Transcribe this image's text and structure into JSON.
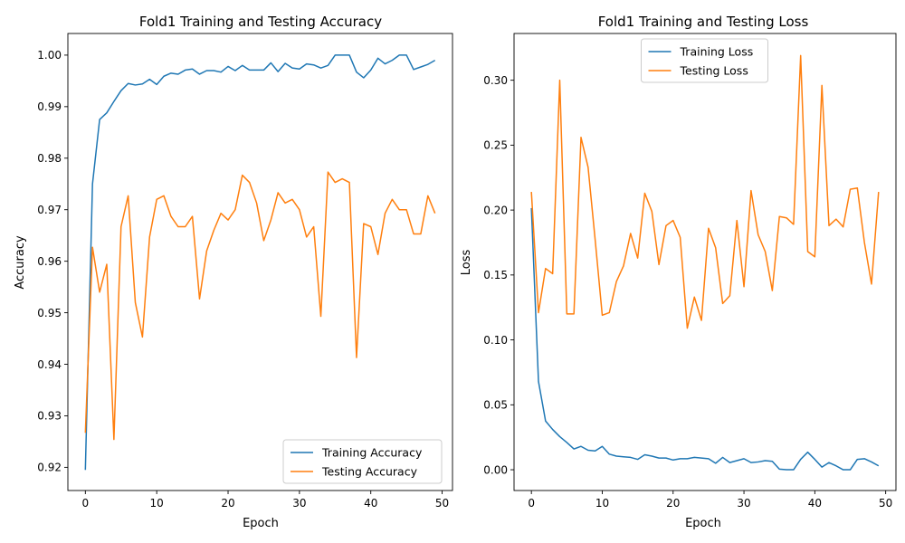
{
  "colors": {
    "training": "#1f77b4",
    "testing": "#ff7f0e"
  },
  "chart_data": [
    {
      "type": "line",
      "title": "Fold1 Training and Testing Accuracy",
      "xlabel": "Epoch",
      "ylabel": "Accuracy",
      "xlim": [
        -2.45,
        51.45
      ],
      "ylim": [
        0.9155,
        1.0042
      ],
      "xticks": [
        0,
        10,
        20,
        30,
        40,
        50
      ],
      "yticks": [
        0.92,
        0.93,
        0.94,
        0.95,
        0.96,
        0.97,
        0.98,
        0.99,
        1.0
      ],
      "ytick_labels": [
        "0.92",
        "0.93",
        "0.94",
        "0.95",
        "0.96",
        "0.97",
        "0.98",
        "0.99",
        "1.00"
      ],
      "grid": false,
      "legend_position": "lower-right",
      "x": [
        0,
        1,
        2,
        3,
        4,
        5,
        6,
        7,
        8,
        9,
        10,
        11,
        12,
        13,
        14,
        15,
        16,
        17,
        18,
        19,
        20,
        21,
        22,
        23,
        24,
        25,
        26,
        27,
        28,
        29,
        30,
        31,
        32,
        33,
        34,
        35,
        36,
        37,
        38,
        39,
        40,
        41,
        42,
        43,
        44,
        45,
        46,
        47,
        48,
        49
      ],
      "series": [
        {
          "name": "Training Accuracy",
          "color_key": "training",
          "values": [
            0.9195,
            0.975,
            0.9875,
            0.9888,
            0.991,
            0.9931,
            0.9945,
            0.9942,
            0.9944,
            0.9953,
            0.9943,
            0.9959,
            0.9965,
            0.9963,
            0.9971,
            0.9973,
            0.9963,
            0.997,
            0.997,
            0.9967,
            0.9978,
            0.997,
            0.998,
            0.9971,
            0.9971,
            0.9971,
            0.9985,
            0.9968,
            0.9984,
            0.9975,
            0.9973,
            0.9983,
            0.9981,
            0.9975,
            0.998,
            1.0,
            1.0,
            1.0,
            0.9967,
            0.9956,
            0.9971,
            0.9994,
            0.9983,
            0.999,
            1.0,
            1.0,
            0.9972,
            0.9977,
            0.9982,
            0.999
          ]
        },
        {
          "name": "Testing Accuracy",
          "color_key": "testing",
          "values": [
            0.9267,
            0.9627,
            0.954,
            0.9594,
            0.9254,
            0.9667,
            0.9727,
            0.952,
            0.9453,
            0.9647,
            0.972,
            0.9727,
            0.9687,
            0.9667,
            0.9667,
            0.9687,
            0.9527,
            0.962,
            0.966,
            0.9693,
            0.968,
            0.97,
            0.9767,
            0.9753,
            0.9713,
            0.964,
            0.968,
            0.9733,
            0.9713,
            0.972,
            0.97,
            0.9647,
            0.9667,
            0.9493,
            0.9773,
            0.9753,
            0.976,
            0.9753,
            0.9413,
            0.9673,
            0.9667,
            0.9613,
            0.9693,
            0.972,
            0.97,
            0.97,
            0.9653,
            0.9653,
            0.9727,
            0.9693
          ]
        }
      ]
    },
    {
      "type": "line",
      "title": "Fold1 Training and Testing Loss",
      "xlabel": "Epoch",
      "ylabel": "Loss",
      "xlim": [
        -2.45,
        51.45
      ],
      "ylim": [
        -0.016,
        0.336
      ],
      "xticks": [
        0,
        10,
        20,
        30,
        40,
        50
      ],
      "yticks": [
        0.0,
        0.05,
        0.1,
        0.15,
        0.2,
        0.25,
        0.3
      ],
      "ytick_labels": [
        "0.00",
        "0.05",
        "0.10",
        "0.15",
        "0.20",
        "0.25",
        "0.30"
      ],
      "grid": false,
      "legend_position": "upper-center",
      "x": [
        0,
        1,
        2,
        3,
        4,
        5,
        6,
        7,
        8,
        9,
        10,
        11,
        12,
        13,
        14,
        15,
        16,
        17,
        18,
        19,
        20,
        21,
        22,
        23,
        24,
        25,
        26,
        27,
        28,
        29,
        30,
        31,
        32,
        33,
        34,
        35,
        36,
        37,
        38,
        39,
        40,
        41,
        42,
        43,
        44,
        45,
        46,
        47,
        48,
        49
      ],
      "series": [
        {
          "name": "Training Loss",
          "color_key": "training",
          "values": [
            0.2015,
            0.068,
            0.0375,
            0.031,
            0.0255,
            0.021,
            0.016,
            0.018,
            0.015,
            0.0145,
            0.018,
            0.012,
            0.0105,
            0.01,
            0.0095,
            0.008,
            0.0115,
            0.0105,
            0.009,
            0.009,
            0.0075,
            0.0085,
            0.0085,
            0.0095,
            0.009,
            0.0085,
            0.005,
            0.0095,
            0.0055,
            0.007,
            0.0085,
            0.0055,
            0.006,
            0.007,
            0.0065,
            0.0005,
            0.0,
            0.0,
            0.008,
            0.0135,
            0.008,
            0.002,
            0.0055,
            0.003,
            0.0,
            0.0,
            0.008,
            0.0085,
            0.006,
            0.003
          ]
        },
        {
          "name": "Testing Loss",
          "color_key": "testing",
          "values": [
            0.214,
            0.121,
            0.155,
            0.151,
            0.3,
            0.12,
            0.12,
            0.256,
            0.233,
            0.177,
            0.119,
            0.121,
            0.145,
            0.157,
            0.182,
            0.163,
            0.213,
            0.199,
            0.158,
            0.188,
            0.192,
            0.179,
            0.109,
            0.133,
            0.115,
            0.186,
            0.171,
            0.128,
            0.134,
            0.192,
            0.141,
            0.215,
            0.181,
            0.168,
            0.138,
            0.195,
            0.194,
            0.189,
            0.319,
            0.168,
            0.164,
            0.296,
            0.188,
            0.193,
            0.187,
            0.216,
            0.217,
            0.175,
            0.143,
            0.214
          ]
        }
      ]
    }
  ]
}
